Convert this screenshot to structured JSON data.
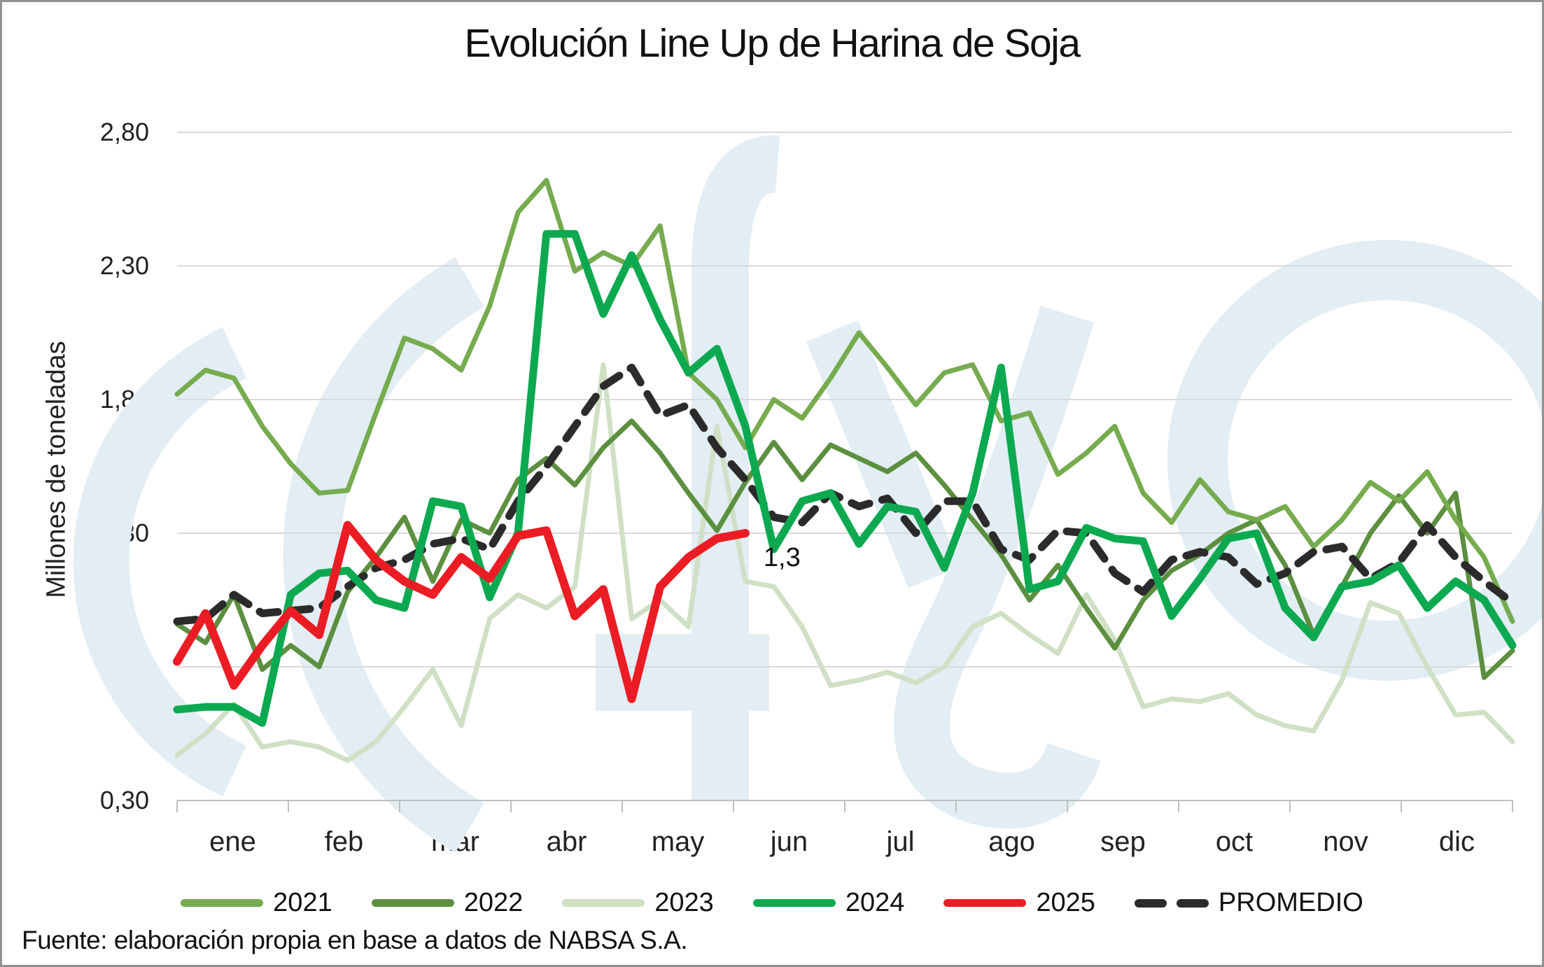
{
  "title": "Evolución Line Up de Harina de Soja",
  "y_axis": {
    "title": "Millones de toneladas",
    "tick_labels": [
      "2,80",
      "2,30",
      "1,80",
      "1,30",
      "0,80",
      "0,30"
    ],
    "min": 0.3,
    "max": 2.8,
    "step": 0.5
  },
  "x_axis": {
    "tick_labels": [
      "ene",
      "feb",
      "mar",
      "abr",
      "may",
      "jun",
      "jul",
      "ago",
      "sep",
      "oct",
      "nov",
      "dic"
    ]
  },
  "annotation": {
    "text": "1,3",
    "series": "2025",
    "value": 1.3
  },
  "source": "Fuente: elaboración propia en base a datos de NABSA S.A.",
  "watermark": {
    "name": "fyo",
    "color": "#e2edf4"
  },
  "colors": {
    "gridline": "#d9d9d9",
    "axis": "#bfbfbf",
    "text": "#1a1a1a"
  },
  "chart_data": {
    "type": "line",
    "title": "Evolución Line Up de Harina de Soja",
    "ylabel": "Millones de toneladas",
    "ylim": [
      0.3,
      2.8
    ],
    "grid": "horizontal",
    "legend_position": "bottom",
    "x_unit": "weekly, 4 points per month, months ene-dic",
    "categories": [
      "ene",
      "feb",
      "mar",
      "abr",
      "may",
      "jun",
      "jul",
      "ago",
      "sep",
      "oct",
      "nov",
      "dic"
    ],
    "points_per_month": 4,
    "series": [
      {
        "name": "2021",
        "color": "#76ab4e",
        "style": "solid",
        "values": [
          1.82,
          1.91,
          1.88,
          1.7,
          1.56,
          1.45,
          1.46,
          1.75,
          2.03,
          1.99,
          1.91,
          2.15,
          2.5,
          2.62,
          2.28,
          2.35,
          2.3,
          2.45,
          1.9,
          1.8,
          1.62,
          1.8,
          1.73,
          1.88,
          2.05,
          1.92,
          1.78,
          1.9,
          1.93,
          1.72,
          1.75,
          1.52,
          1.6,
          1.7,
          1.45,
          1.34,
          1.5,
          1.38,
          1.35,
          1.4,
          1.25,
          1.35,
          1.49,
          1.42,
          1.53,
          1.35,
          1.21,
          0.97
        ]
      },
      {
        "name": "2022",
        "color": "#5c8f3f",
        "style": "solid",
        "values": [
          0.96,
          0.89,
          1.07,
          0.79,
          0.88,
          0.8,
          1.08,
          1.21,
          1.36,
          1.12,
          1.35,
          1.3,
          1.5,
          1.58,
          1.48,
          1.62,
          1.72,
          1.6,
          1.45,
          1.31,
          1.49,
          1.64,
          1.5,
          1.63,
          1.58,
          1.53,
          1.6,
          1.48,
          1.35,
          1.22,
          1.05,
          1.18,
          1.02,
          0.87,
          1.05,
          1.16,
          1.22,
          1.3,
          1.35,
          1.18,
          0.92,
          1.1,
          1.3,
          1.44,
          1.3,
          1.45,
          0.76,
          0.86
        ]
      },
      {
        "name": "2023",
        "color": "#cfe0c5",
        "style": "solid",
        "values": [
          0.47,
          0.55,
          0.66,
          0.5,
          0.52,
          0.5,
          0.45,
          0.52,
          0.65,
          0.79,
          0.58,
          0.98,
          1.07,
          1.02,
          1.1,
          1.93,
          0.98,
          1.05,
          0.95,
          1.7,
          1.12,
          1.1,
          0.95,
          0.73,
          0.75,
          0.78,
          0.74,
          0.8,
          0.95,
          1.0,
          0.92,
          0.85,
          1.07,
          0.9,
          0.65,
          0.68,
          0.67,
          0.7,
          0.62,
          0.58,
          0.56,
          0.75,
          1.04,
          1.0,
          0.8,
          0.62,
          0.63,
          0.52
        ]
      },
      {
        "name": "2024",
        "color": "#0ca950",
        "style": "solid",
        "values": [
          0.64,
          0.65,
          0.65,
          0.59,
          1.07,
          1.15,
          1.16,
          1.05,
          1.02,
          1.42,
          1.4,
          1.06,
          1.3,
          2.42,
          2.42,
          2.12,
          2.34,
          2.1,
          1.9,
          1.99,
          1.7,
          1.24,
          1.42,
          1.45,
          1.26,
          1.4,
          1.38,
          1.17,
          1.45,
          1.92,
          1.09,
          1.12,
          1.32,
          1.28,
          1.27,
          0.99,
          1.13,
          1.28,
          1.3,
          1.02,
          0.91,
          1.1,
          1.12,
          1.18,
          1.02,
          1.12,
          1.05,
          0.88
        ]
      },
      {
        "name": "2025",
        "color": "#ec1c24",
        "style": "solid",
        "values": [
          0.82,
          1.0,
          0.73,
          0.88,
          1.01,
          0.92,
          1.33,
          1.2,
          1.12,
          1.07,
          1.21,
          1.13,
          1.29,
          1.31,
          0.99,
          1.09,
          0.68,
          1.1,
          1.21,
          1.28,
          1.3
        ]
      },
      {
        "name": "PROMEDIO",
        "color": "#2b2b2b",
        "style": "dashed",
        "values": [
          0.97,
          0.98,
          1.07,
          1.0,
          1.01,
          1.02,
          1.1,
          1.17,
          1.2,
          1.26,
          1.28,
          1.24,
          1.42,
          1.55,
          1.7,
          1.85,
          1.92,
          1.74,
          1.78,
          1.62,
          1.5,
          1.36,
          1.34,
          1.45,
          1.4,
          1.43,
          1.3,
          1.42,
          1.42,
          1.24,
          1.2,
          1.31,
          1.3,
          1.15,
          1.08,
          1.2,
          1.23,
          1.21,
          1.11,
          1.15,
          1.23,
          1.25,
          1.13,
          1.19,
          1.33,
          1.21,
          1.12,
          1.04
        ]
      }
    ]
  }
}
